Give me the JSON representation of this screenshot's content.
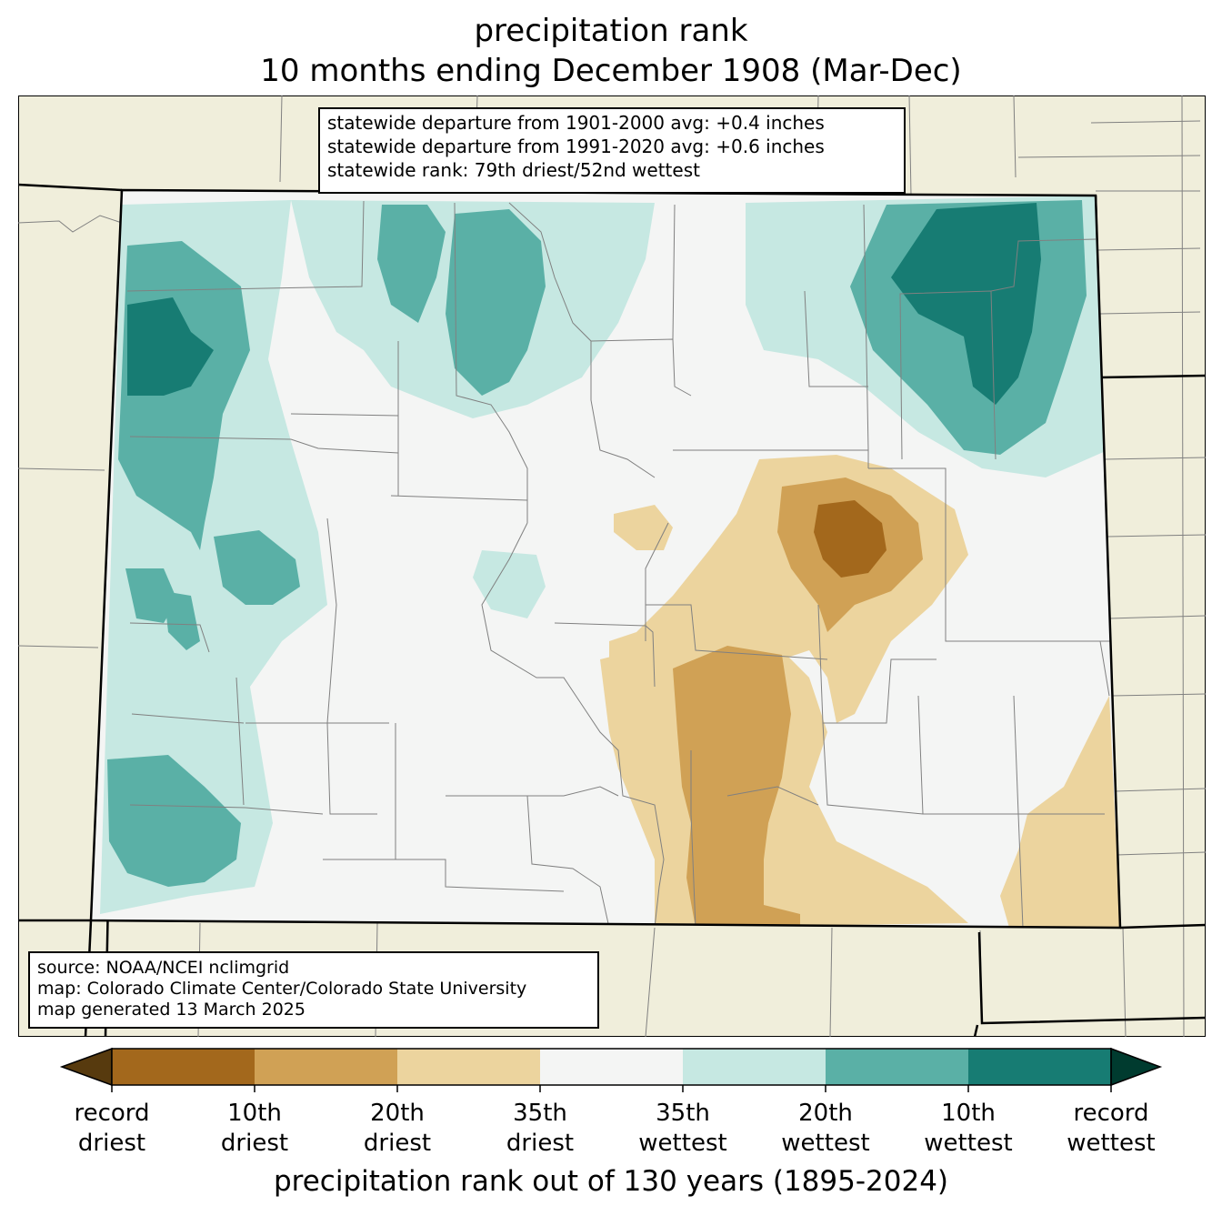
{
  "title": {
    "line1": "precipitation rank",
    "line2": "10 months ending December 1908 (Mar-Dec)"
  },
  "stats": {
    "line1": "statewide departure from 1901-2000 avg: +0.4 inches",
    "line2": "statewide departure from 1991-2020 avg: +0.6 inches",
    "line3": "statewide rank: 79th driest/52nd wettest"
  },
  "source": {
    "line1": "source: NOAA/NCEI nclimgrid",
    "line2": "map: Colorado Climate Center/Colorado State University",
    "line3": "map generated 13 March 2025"
  },
  "colors": {
    "land_outside": "#f0eedb",
    "record_driest": "#a3681c",
    "driest_10th": "#d0a155",
    "driest_20th": "#ecd49e",
    "near_normal": "#f4f5f4",
    "wettest_20th": "#c6e8e2",
    "wettest_10th": "#5ab0a6",
    "record_wettest": "#177c73",
    "extend_dry": "#573a0e",
    "extend_wet": "#003b2f"
  },
  "legend": {
    "ticks": [
      {
        "line1": "record",
        "line2": "driest"
      },
      {
        "line1": "10th",
        "line2": "driest"
      },
      {
        "line1": "20th",
        "line2": "driest"
      },
      {
        "line1": "35th",
        "line2": "driest"
      },
      {
        "line1": "35th",
        "line2": "wettest"
      },
      {
        "line1": "20th",
        "line2": "wettest"
      },
      {
        "line1": "10th",
        "line2": "wettest"
      },
      {
        "line1": "record",
        "line2": "wettest"
      }
    ],
    "label": "precipitation rank out of 130 years (1895-2024)"
  }
}
